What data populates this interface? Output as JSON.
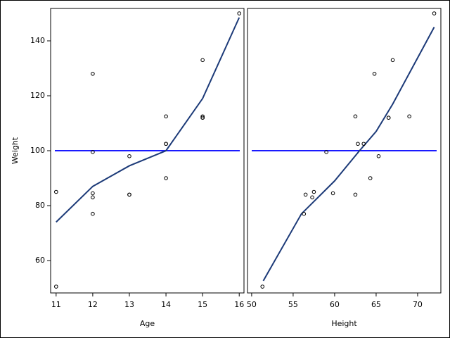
{
  "chart_data": [
    {
      "type": "scatter",
      "x_label": "Age",
      "y_label": "Weight",
      "x": [
        14,
        13,
        13,
        14,
        14,
        12,
        12,
        15,
        13,
        12,
        11,
        14,
        12,
        15,
        16,
        12,
        15,
        11,
        15
      ],
      "values": [
        112.5,
        84,
        98,
        102.5,
        102.5,
        83,
        84.5,
        112.5,
        84,
        99.5,
        50.5,
        90,
        77,
        112,
        150,
        128,
        133,
        85,
        112
      ],
      "point_color": "#000000",
      "fit_x": [
        11,
        12,
        13,
        14,
        15,
        16
      ],
      "fit_values": [
        74,
        87,
        94.5,
        100,
        119,
        148.5
      ],
      "fit_color": "#1c3a78",
      "refline": 100,
      "refline_color": "#1a1aff",
      "xlim": [
        10.85,
        16.13
      ],
      "ylim": [
        48.2,
        151.8
      ],
      "xticks": [
        11,
        12,
        13,
        14,
        15,
        16
      ],
      "yticks": [
        60,
        80,
        100,
        120,
        140
      ]
    },
    {
      "type": "scatter",
      "x_label": "Height",
      "x": [
        69,
        56.5,
        65.3,
        62.8,
        63.5,
        57.3,
        59.8,
        62.5,
        62.5,
        59,
        51.3,
        64.3,
        56.3,
        66.5,
        72,
        64.8,
        67,
        57.5,
        66.5
      ],
      "values": [
        112.5,
        84,
        98,
        102.5,
        102.5,
        83,
        84.5,
        112.5,
        84,
        99.5,
        50.5,
        90,
        77,
        112,
        150,
        128,
        133,
        85,
        112
      ],
      "point_color": "#000000",
      "fit_x": [
        51.4,
        56,
        60,
        63,
        65,
        67,
        72
      ],
      "fit_values": [
        52.6,
        77,
        89,
        100,
        107,
        117,
        145
      ],
      "fit_color": "#1c3a78",
      "refline": 100,
      "refline_color": "#1a1aff",
      "xlim": [
        49.5,
        72.8
      ],
      "ylim": [
        48.2,
        151.8
      ],
      "xticks": [
        50,
        55,
        60,
        65,
        70
      ]
    }
  ]
}
